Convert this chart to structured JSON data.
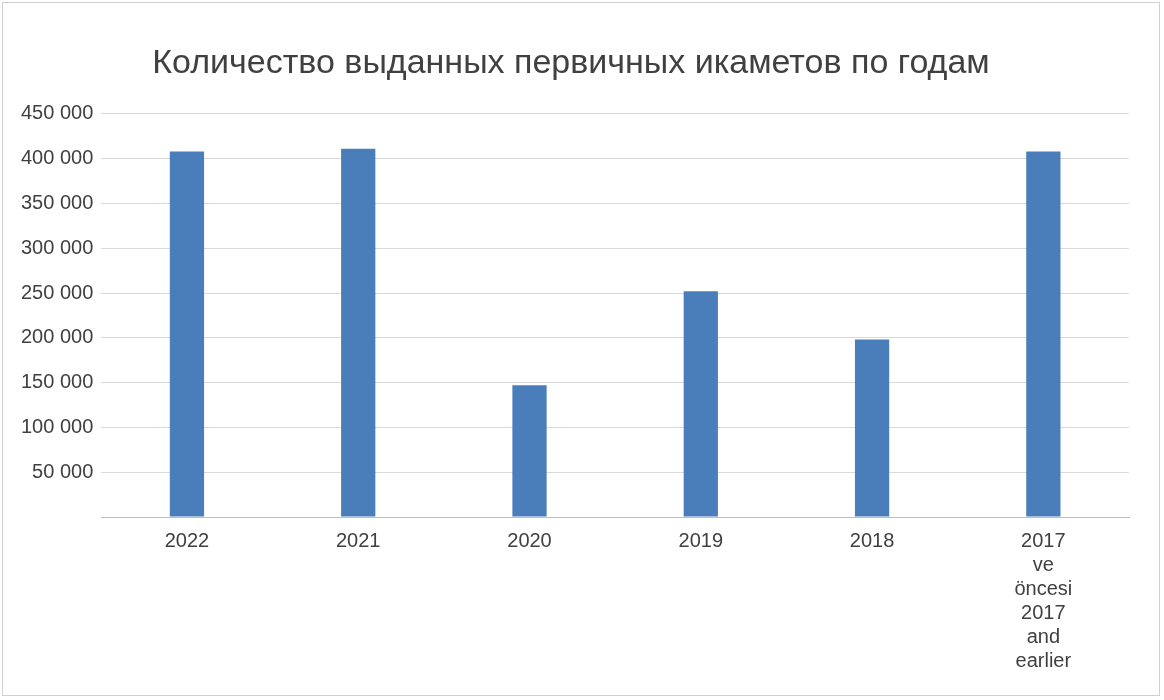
{
  "chart_data": {
    "type": "bar",
    "title": "Количество выданных первичных икаметов по годам",
    "categories": [
      "2022",
      "2021",
      "2020",
      "2019",
      "2018",
      "2017 ve öncesi 2017 and earlier"
    ],
    "values": [
      408000,
      411000,
      147000,
      252000,
      198000,
      408000
    ],
    "color": "#4a7ebb",
    "ylim": [
      0,
      450000
    ],
    "yticks": [
      {
        "value": 0,
        "label": null
      },
      {
        "value": 50000,
        "label": "50 000"
      },
      {
        "value": 100000,
        "label": "100 000"
      },
      {
        "value": 150000,
        "label": "150 000"
      },
      {
        "value": 200000,
        "label": "200 000"
      },
      {
        "value": 250000,
        "label": "250 000"
      },
      {
        "value": 300000,
        "label": "300 000"
      },
      {
        "value": 350000,
        "label": "350 000"
      },
      {
        "value": 400000,
        "label": "400 000"
      },
      {
        "value": 450000,
        "label": "450 000"
      }
    ],
    "grid": "y",
    "legend": false
  }
}
